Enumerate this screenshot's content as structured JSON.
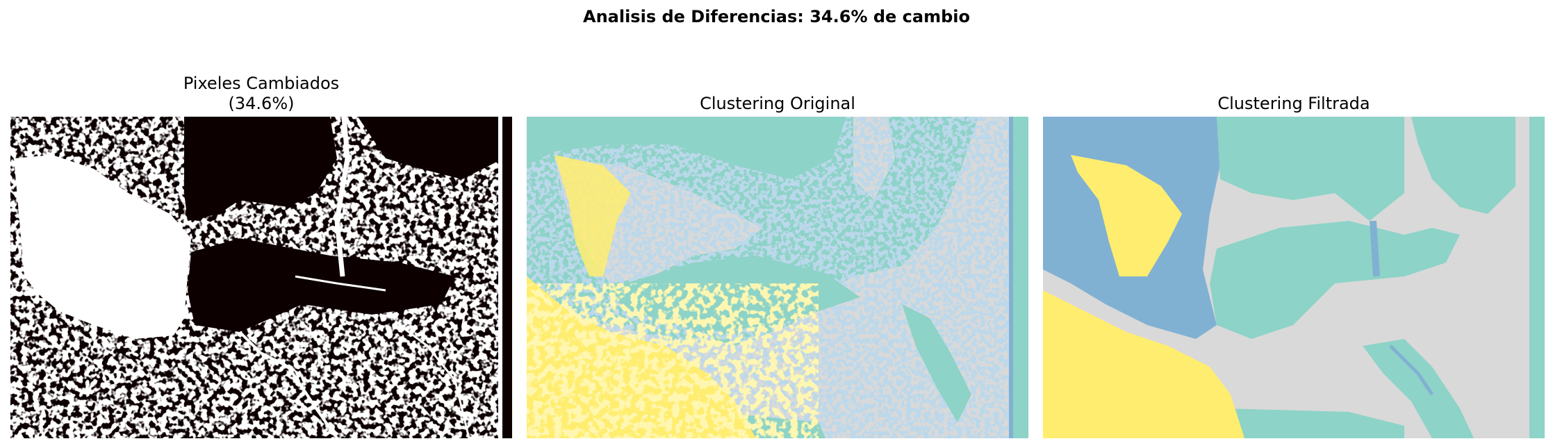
{
  "figure": {
    "suptitle": "Analisis de Diferencias: 34.6% de cambio"
  },
  "panels": [
    {
      "title_line1": "Pixeles Cambiados",
      "title_line2": "(34.6%)"
    },
    {
      "title_line1": "Clustering Original"
    },
    {
      "title_line1": "Clustering Filtrada"
    }
  ],
  "colors": {
    "changed": "#ffffff",
    "unchanged": "#0d0000",
    "cluster_teal": "#8dd3c7",
    "cluster_blue": "#80b1d3",
    "cluster_gray": "#d9d9d9",
    "cluster_yellow": "#ffed6f"
  }
}
